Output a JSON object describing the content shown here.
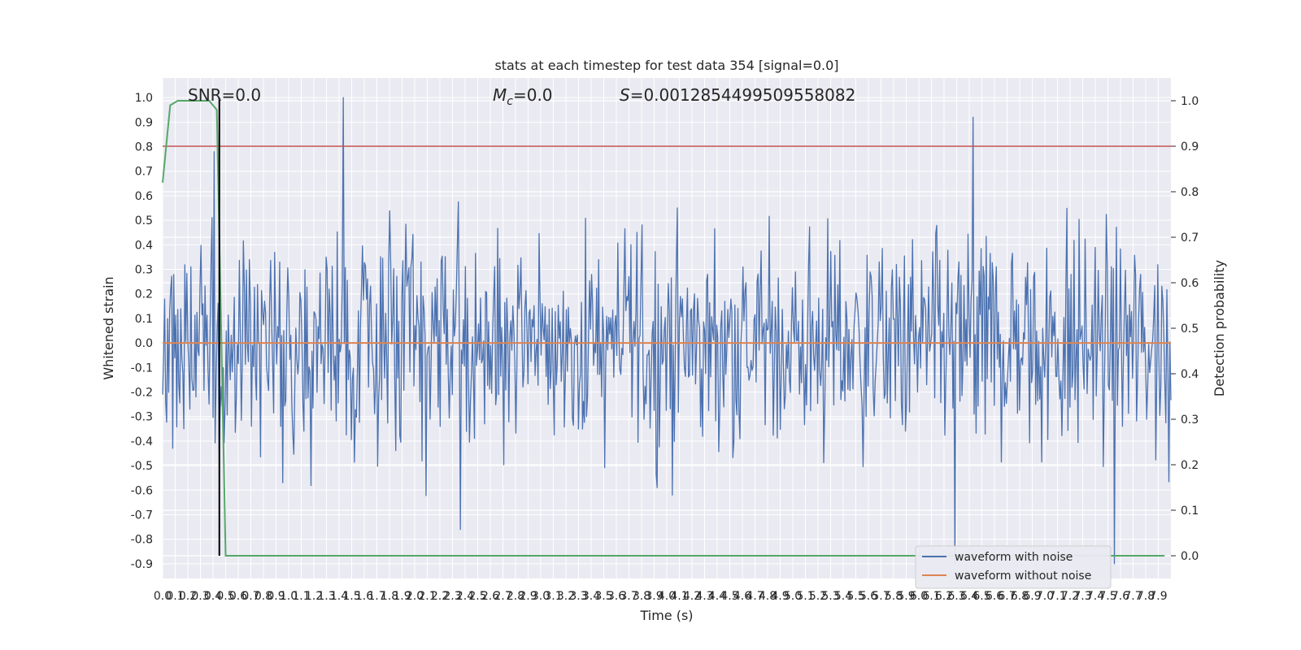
{
  "chart_data": {
    "type": "line",
    "title": "stats at each timestep for test data 354 [signal=0.0]",
    "xlabel": "Time (s)",
    "ylabel": "Whitened strain",
    "ylabel_right": "Detection probability",
    "xlim": [
      0.0,
      8.0
    ],
    "ylim": [
      -0.96,
      1.08
    ],
    "ylim_right": [
      -0.05,
      1.05
    ],
    "x_ticks": [
      0.0,
      0.1,
      0.2,
      0.3,
      0.4,
      0.5,
      0.6,
      0.7,
      0.8,
      0.9,
      1.0,
      1.1,
      1.2,
      1.3,
      1.4,
      1.5,
      1.6,
      1.7,
      1.8,
      1.9,
      2.0,
      2.1,
      2.2,
      2.3,
      2.4,
      2.5,
      2.6,
      2.7,
      2.8,
      2.9,
      3.0,
      3.1,
      3.2,
      3.3,
      3.4,
      3.5,
      3.6,
      3.7,
      3.8,
      3.9,
      4.0,
      4.1,
      4.2,
      4.3,
      4.4,
      4.5,
      4.6,
      4.7,
      4.8,
      4.9,
      5.0,
      5.1,
      5.2,
      5.3,
      5.4,
      5.5,
      5.6,
      5.7,
      5.8,
      5.9,
      6.0,
      6.1,
      6.2,
      6.3,
      6.4,
      6.5,
      6.6,
      6.7,
      6.8,
      6.9,
      7.0,
      7.1,
      7.2,
      7.3,
      7.4,
      7.5,
      7.6,
      7.7,
      7.8,
      7.9
    ],
    "y_ticks_left": [
      -0.9,
      -0.8,
      -0.7,
      -0.6,
      -0.5,
      -0.4,
      -0.3,
      -0.2,
      -0.1,
      0.0,
      0.1,
      0.2,
      0.3,
      0.4,
      0.5,
      0.6,
      0.7,
      0.8,
      0.9,
      1.0
    ],
    "y_ticks_right": [
      0.0,
      0.1,
      0.2,
      0.3,
      0.4,
      0.5,
      0.6,
      0.7,
      0.8,
      0.9,
      1.0
    ],
    "annotations": {
      "snr": "SNR=0.0",
      "mc": "=0.0",
      "mc_symbol": "M",
      "mc_subscript": "c",
      "s": "=0.0012854499509558082",
      "s_symbol": "S"
    },
    "threshold_right": 0.9,
    "marker_time": 0.45,
    "series": [
      {
        "name": "waveform with noise",
        "color": "#4c72b0",
        "axis": "left",
        "samples": 1000,
        "abs_max_estimate": 1.0,
        "spikes": [
          {
            "x": 0.41,
            "y": 0.78
          },
          {
            "x": 1.43,
            "y": 1.0
          },
          {
            "x": 2.36,
            "y": -0.76
          },
          {
            "x": 6.29,
            "y": -0.9
          },
          {
            "x": 6.43,
            "y": 0.92
          },
          {
            "x": 7.55,
            "y": -0.9
          }
        ]
      },
      {
        "name": "waveform without noise",
        "color": "#dd8452",
        "axis": "left",
        "x": [
          0.0,
          8.0
        ],
        "y": [
          0.0,
          0.0
        ]
      },
      {
        "color": "#55a868",
        "axis": "right",
        "x": [
          0.0,
          0.06,
          0.12,
          0.2,
          0.3,
          0.37,
          0.43,
          0.5,
          1.0,
          7.95
        ],
        "y": [
          0.82,
          0.99,
          1.0,
          1.0,
          1.0,
          1.0,
          0.98,
          0.0,
          0.0,
          0.0
        ]
      }
    ],
    "threshold_color": "#c44e52",
    "marker_color": "#000000",
    "grid": true,
    "legend_position": "lower-right"
  }
}
